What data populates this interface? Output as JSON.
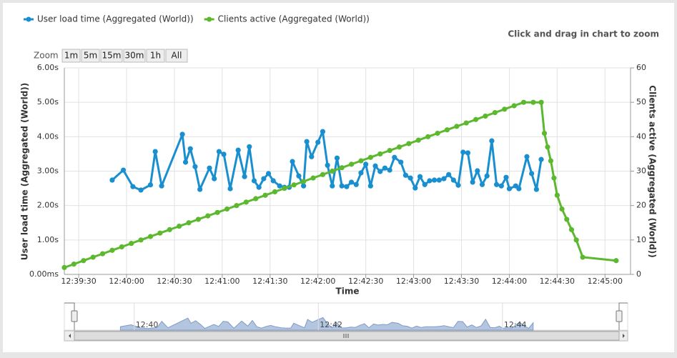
{
  "chart_data": {
    "type": "line",
    "subtitle": "Click and drag in chart to zoom",
    "zoom_label": "Zoom",
    "zoom_buttons": [
      "1m",
      "5m",
      "15m",
      "30m",
      "1h",
      "All"
    ],
    "x_label": "Time",
    "y_label": "User load time (Aggregated (World))",
    "y2_label": "Clients active (Aggregated (World))",
    "xlim": [
      "12:39:21",
      "12:45:16"
    ],
    "xticks": [
      "12:39:30",
      "12:40:00",
      "12:40:30",
      "12:41:00",
      "12:41:30",
      "12:42:00",
      "12:42:30",
      "12:43:00",
      "12:43:30",
      "12:44:00",
      "12:44:30",
      "12:45:00"
    ],
    "ylim": [
      0,
      6
    ],
    "yticks": [
      {
        "value": 0,
        "label": "0.00ms"
      },
      {
        "value": 1,
        "label": "1.00s"
      },
      {
        "value": 2,
        "label": "2.00s"
      },
      {
        "value": 3,
        "label": "3.00s"
      },
      {
        "value": 4,
        "label": "4.00s"
      },
      {
        "value": 5,
        "label": "5.00s"
      },
      {
        "value": 6,
        "label": "6.00s"
      }
    ],
    "y2lim": [
      0,
      60
    ],
    "y2ticks": [
      0,
      10,
      20,
      30,
      40,
      50,
      60
    ],
    "grid": true,
    "legend": "top-left",
    "navigator_ticks": [
      "12:40",
      "12:42",
      "12:44"
    ],
    "series": [
      {
        "name": "User load time (Aggregated (World))",
        "color": "#1a8fcf",
        "axis": "y",
        "x": [
          "12:39:51",
          "12:39:58",
          "12:40:04",
          "12:40:09",
          "12:40:15",
          "12:40:18",
          "12:40:22",
          "12:40:35",
          "12:40:37",
          "12:40:40",
          "12:40:43",
          "12:40:46",
          "12:40:52",
          "12:40:55",
          "12:40:58",
          "12:41:01",
          "12:41:05",
          "12:41:10",
          "12:41:14",
          "12:41:17",
          "12:41:20",
          "12:41:23",
          "12:41:26",
          "12:41:29",
          "12:41:32",
          "12:41:36",
          "12:41:39",
          "12:41:42",
          "12:41:44",
          "12:41:48",
          "12:41:51",
          "12:41:53",
          "12:41:56",
          "12:42:00",
          "12:42:03",
          "12:42:06",
          "12:42:09",
          "12:42:12",
          "12:42:15",
          "12:42:18",
          "12:42:21",
          "12:42:24",
          "12:42:27",
          "12:42:30",
          "12:42:33",
          "12:42:36",
          "12:42:39",
          "12:42:42",
          "12:42:45",
          "12:42:48",
          "12:42:52",
          "12:42:55",
          "12:42:58",
          "12:43:01",
          "12:43:04",
          "12:43:07",
          "12:43:10",
          "12:43:13",
          "12:43:16",
          "12:43:19",
          "12:43:22",
          "12:43:25",
          "12:43:28",
          "12:43:31",
          "12:43:34",
          "12:43:37",
          "12:43:40",
          "12:43:43",
          "12:43:46",
          "12:43:49",
          "12:43:52",
          "12:43:55",
          "12:43:58",
          "12:44:00",
          "12:44:04",
          "12:44:06",
          "12:44:11",
          "12:44:14",
          "12:44:17",
          "12:44:20"
        ],
        "values": [
          2.74,
          3.03,
          2.55,
          2.45,
          2.6,
          3.57,
          2.57,
          4.07,
          3.26,
          3.65,
          3.13,
          2.47,
          3.09,
          2.78,
          3.57,
          3.49,
          2.49,
          3.61,
          2.84,
          3.71,
          2.72,
          2.53,
          2.78,
          2.93,
          2.72,
          2.57,
          2.53,
          2.53,
          3.28,
          2.86,
          2.57,
          3.86,
          3.42,
          3.84,
          4.15,
          3.17,
          2.57,
          3.38,
          2.57,
          2.55,
          2.68,
          2.61,
          2.95,
          3.2,
          2.57,
          3.15,
          2.99,
          3.09,
          3.03,
          3.4,
          3.26,
          2.88,
          2.8,
          2.51,
          2.84,
          2.61,
          2.72,
          2.74,
          2.74,
          2.78,
          2.9,
          2.74,
          2.59,
          3.55,
          3.53,
          2.68,
          3.01,
          2.61,
          2.86,
          3.88,
          2.61,
          2.57,
          2.82,
          2.49,
          2.57,
          2.49,
          3.42,
          2.93,
          2.47,
          3.34
        ]
      },
      {
        "name": "Clients active (Aggregated (World))",
        "color": "#5cb82f",
        "axis": "y2",
        "x": [
          "12:39:21",
          "12:39:27",
          "12:39:33",
          "12:39:39",
          "12:39:45",
          "12:39:51",
          "12:39:57",
          "12:40:03",
          "12:40:09",
          "12:40:15",
          "12:40:21",
          "12:40:27",
          "12:40:33",
          "12:40:39",
          "12:40:45",
          "12:40:51",
          "12:40:57",
          "12:41:03",
          "12:41:09",
          "12:41:15",
          "12:41:21",
          "12:41:27",
          "12:41:33",
          "12:41:39",
          "12:41:45",
          "12:41:51",
          "12:41:57",
          "12:42:03",
          "12:42:09",
          "12:42:15",
          "12:42:21",
          "12:42:27",
          "12:42:33",
          "12:42:39",
          "12:42:45",
          "12:42:51",
          "12:42:57",
          "12:43:03",
          "12:43:09",
          "12:43:15",
          "12:43:21",
          "12:43:27",
          "12:43:33",
          "12:43:39",
          "12:43:45",
          "12:43:51",
          "12:43:57",
          "12:44:03",
          "12:44:09",
          "12:44:15",
          "12:44:20",
          "12:44:22",
          "12:44:24",
          "12:44:26",
          "12:44:28",
          "12:44:30",
          "12:44:33",
          "12:44:36",
          "12:44:39",
          "12:44:42",
          "12:44:46",
          "12:45:07"
        ],
        "values": [
          2,
          3,
          4,
          5,
          6,
          7,
          8,
          9,
          10,
          11,
          12,
          13,
          14,
          15,
          16,
          17,
          18,
          19,
          20,
          21,
          22,
          23,
          24,
          25,
          26,
          27,
          28,
          29,
          30,
          31,
          32,
          33,
          34,
          35,
          36,
          37,
          38,
          39,
          40,
          41,
          42,
          43,
          44,
          45,
          46,
          47,
          48,
          49,
          50,
          50,
          50,
          41,
          37,
          33,
          28,
          23,
          19,
          16,
          13,
          10,
          5,
          4
        ]
      }
    ]
  }
}
